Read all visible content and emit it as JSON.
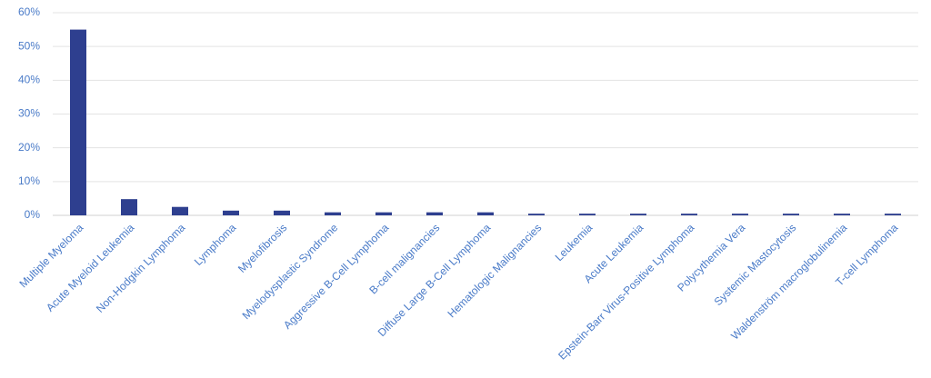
{
  "chart_data": {
    "type": "bar",
    "categories": [
      "Multiple Myeloma",
      "Acute Myeloid Leukemia",
      "Non-Hodgkin Lymphoma",
      "Lymphoma",
      "Myelofibrosis",
      "Myelodysplastic Syndrome",
      "Aggressive B-Cell Lymphoma",
      "B-cell malignancies",
      "Diffuse Large B-Cell Lymphoma",
      "Hematologic Malignancies",
      "Leukemia",
      "Acute Leukemia",
      "Epstein-Barr Virus-Positive Lymphoma",
      "Polycythemia Vera",
      "Systemic Mastocytosis",
      "Waldenström macroglobulinemia",
      "T-cell Lymphoma"
    ],
    "values": [
      55,
      4.8,
      2.5,
      1.4,
      1.4,
      0.9,
      0.9,
      0.9,
      0.9,
      0.5,
      0.5,
      0.5,
      0.5,
      0.5,
      0.5,
      0.5,
      0.5
    ],
    "color": "#2e3f8f",
    "ylim": [
      0,
      60
    ],
    "yticks": [
      {
        "value": 0,
        "label": "0%"
      },
      {
        "value": 10,
        "label": "10%"
      },
      {
        "value": 20,
        "label": "20%"
      },
      {
        "value": 30,
        "label": "30%"
      },
      {
        "value": 40,
        "label": "40%"
      },
      {
        "value": 50,
        "label": "50%"
      },
      {
        "value": 60,
        "label": "60%"
      }
    ],
    "grid": true
  }
}
